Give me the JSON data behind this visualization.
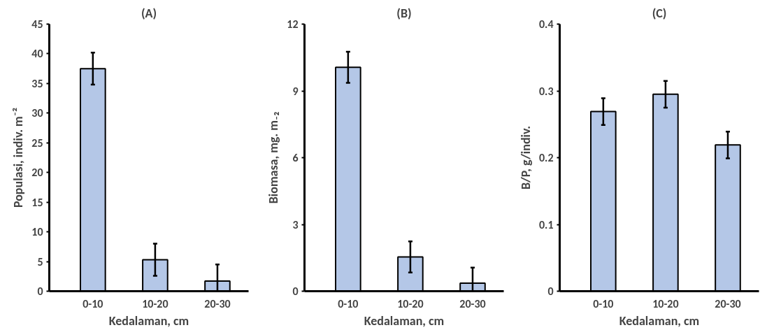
{
  "chart_data": [
    {
      "type": "bar",
      "title": "(A)",
      "xlabel": "Kedalaman, cm",
      "ylabel": "Populasi, indiv. m⁻²",
      "categories": [
        "0-10",
        "10-20",
        "20-30"
      ],
      "values": [
        37.5,
        5.3,
        1.7
      ],
      "errors": [
        2.7,
        2.7,
        2.8
      ],
      "color": "#b4c7e7",
      "ylim": [
        0,
        45
      ],
      "yticks": [
        0,
        5,
        10,
        15,
        20,
        25,
        30,
        35,
        40,
        45
      ],
      "grid": false
    },
    {
      "type": "bar",
      "title": "(B)",
      "xlabel": "Kedalaman, cm",
      "ylabel": "Biomasa, mg. m₋₂",
      "categories": [
        "0-10",
        "10-20",
        "20-30"
      ],
      "values": [
        10.06,
        1.54,
        0.36
      ],
      "errors": [
        0.7,
        0.7,
        0.7
      ],
      "color": "#b4c7e7",
      "ylim": [
        0,
        12
      ],
      "yticks": [
        0,
        3,
        6,
        9,
        12
      ],
      "grid": false
    },
    {
      "type": "bar",
      "title": "(C)",
      "xlabel": "Kedalaman, cm",
      "ylabel": "B/P, g/indiv.",
      "categories": [
        "0-10",
        "10-20",
        "20-30"
      ],
      "values": [
        0.269,
        0.295,
        0.219
      ],
      "errors": [
        0.02,
        0.02,
        0.02
      ],
      "color": "#b4c7e7",
      "ylim": [
        0,
        0.4
      ],
      "yticks": [
        0,
        0.1,
        0.2,
        0.3,
        0.4
      ],
      "grid": false
    }
  ]
}
